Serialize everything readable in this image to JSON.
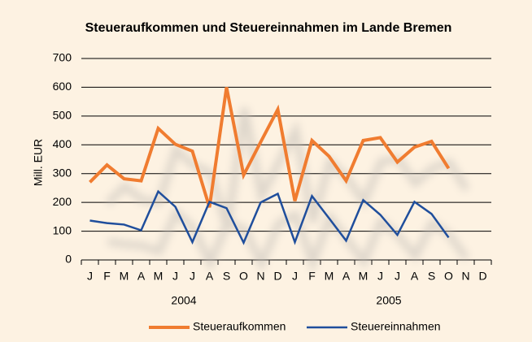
{
  "chart_data": {
    "type": "line",
    "title": "Steueraufkommen und Steuereinnahmen im Lande Bremen",
    "y_label": "Mill. EUR",
    "categories": [
      "J",
      "F",
      "M",
      "A",
      "M",
      "J",
      "J",
      "A",
      "S",
      "O",
      "N",
      "D",
      "J",
      "F",
      "M",
      "A",
      "M",
      "J",
      "J",
      "A",
      "S",
      "O",
      "N",
      "D"
    ],
    "groups": [
      "2004",
      "2005"
    ],
    "series": [
      {
        "name": "Steueraufkommen",
        "color": "#f07c30",
        "values": [
          270,
          330,
          282,
          275,
          457,
          402,
          378,
          183,
          600,
          295,
          410,
          523,
          205,
          415,
          360,
          275,
          415,
          425,
          340,
          392,
          412,
          318,
          null,
          null
        ]
      },
      {
        "name": "Steuereinnahmen",
        "color": "#1f4e9c",
        "values": [
          137,
          128,
          123,
          103,
          238,
          185,
          62,
          202,
          180,
          60,
          200,
          230,
          62,
          222,
          145,
          67,
          208,
          157,
          87,
          202,
          160,
          78,
          null,
          null
        ]
      }
    ],
    "ylim": [
      0,
      700
    ],
    "yticks": [
      0,
      100,
      200,
      300,
      400,
      500,
      600,
      700
    ],
    "grid": true,
    "legend": "bottom"
  }
}
